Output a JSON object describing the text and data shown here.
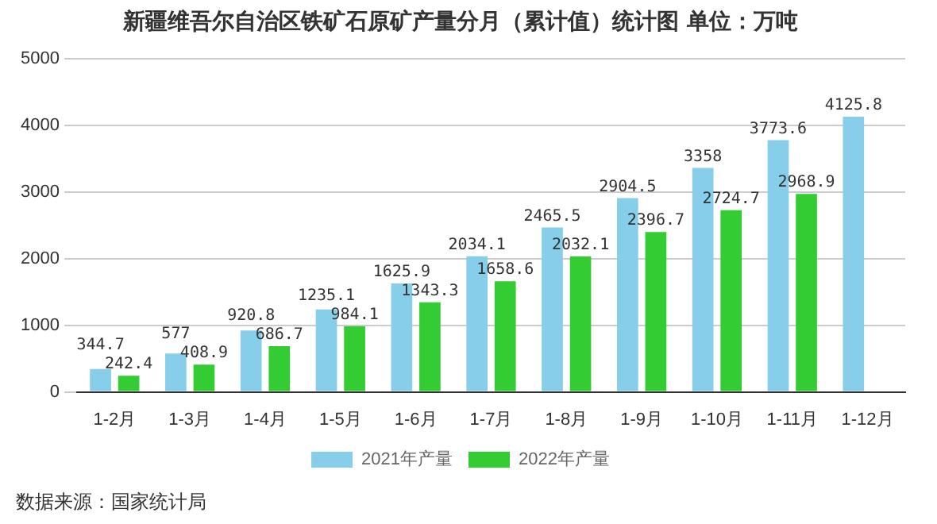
{
  "chart_data": {
    "type": "bar",
    "title": "新疆维吾尔自治区铁矿石原矿产量分月（累计值）统计图 单位：万吨",
    "categories": [
      "1-2月",
      "1-3月",
      "1-4月",
      "1-5月",
      "1-6月",
      "1-7月",
      "1-8月",
      "1-9月",
      "1-10月",
      "1-11月",
      "1-12月"
    ],
    "series": [
      {
        "name": "2021年产量",
        "color": "#87ceeb",
        "values": [
          344.7,
          577,
          920.8,
          1235.1,
          1625.9,
          2034.1,
          2465.5,
          2904.5,
          3358,
          3773.6,
          4125.8
        ]
      },
      {
        "name": "2022年产量",
        "color": "#33cc33",
        "values": [
          242.4,
          408.9,
          686.7,
          984.1,
          1343.3,
          1658.6,
          2032.1,
          2396.7,
          2724.7,
          2968.9,
          null
        ]
      }
    ],
    "ylim": [
      0,
      5000
    ],
    "yticks": [
      0,
      1000,
      2000,
      3000,
      4000,
      5000
    ],
    "grid": "y",
    "legend": "bottom",
    "data_labels": true,
    "annotations": [
      "数据来源：国家统计局"
    ]
  }
}
